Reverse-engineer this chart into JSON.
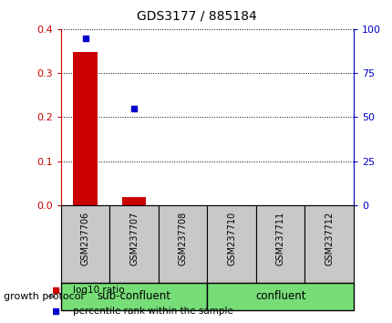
{
  "title": "GDS3177 / 885184",
  "samples": [
    "GSM237706",
    "GSM237707",
    "GSM237708",
    "GSM237710",
    "GSM237711",
    "GSM237712"
  ],
  "log10_ratio": [
    0.347,
    0.018,
    0.0,
    0.0,
    0.0,
    0.0
  ],
  "percentile_rank": [
    95.0,
    55.0,
    null,
    null,
    null,
    null
  ],
  "left_ylim": [
    0,
    0.4
  ],
  "right_ylim": [
    0,
    100
  ],
  "left_yticks": [
    0,
    0.1,
    0.2,
    0.3,
    0.4
  ],
  "right_yticks": [
    0,
    25,
    50,
    75,
    100
  ],
  "left_ycolor": "#cc0000",
  "right_ycolor": "#0000cc",
  "bar_color": "#cc0000",
  "dot_color": "#0000cc",
  "sub_confluent_indices": [
    0,
    1,
    2
  ],
  "confluent_indices": [
    3,
    4,
    5
  ],
  "sub_confluent_label": "sub-confluent",
  "confluent_label": "confluent",
  "group_bar_color": "#77dd77",
  "sample_bar_color": "#c8c8c8",
  "protocol_label": "growth protocol",
  "legend_items": [
    {
      "label": "log10 ratio",
      "color": "#cc0000"
    },
    {
      "label": "percentile rank within the sample",
      "color": "#0000cc"
    }
  ]
}
